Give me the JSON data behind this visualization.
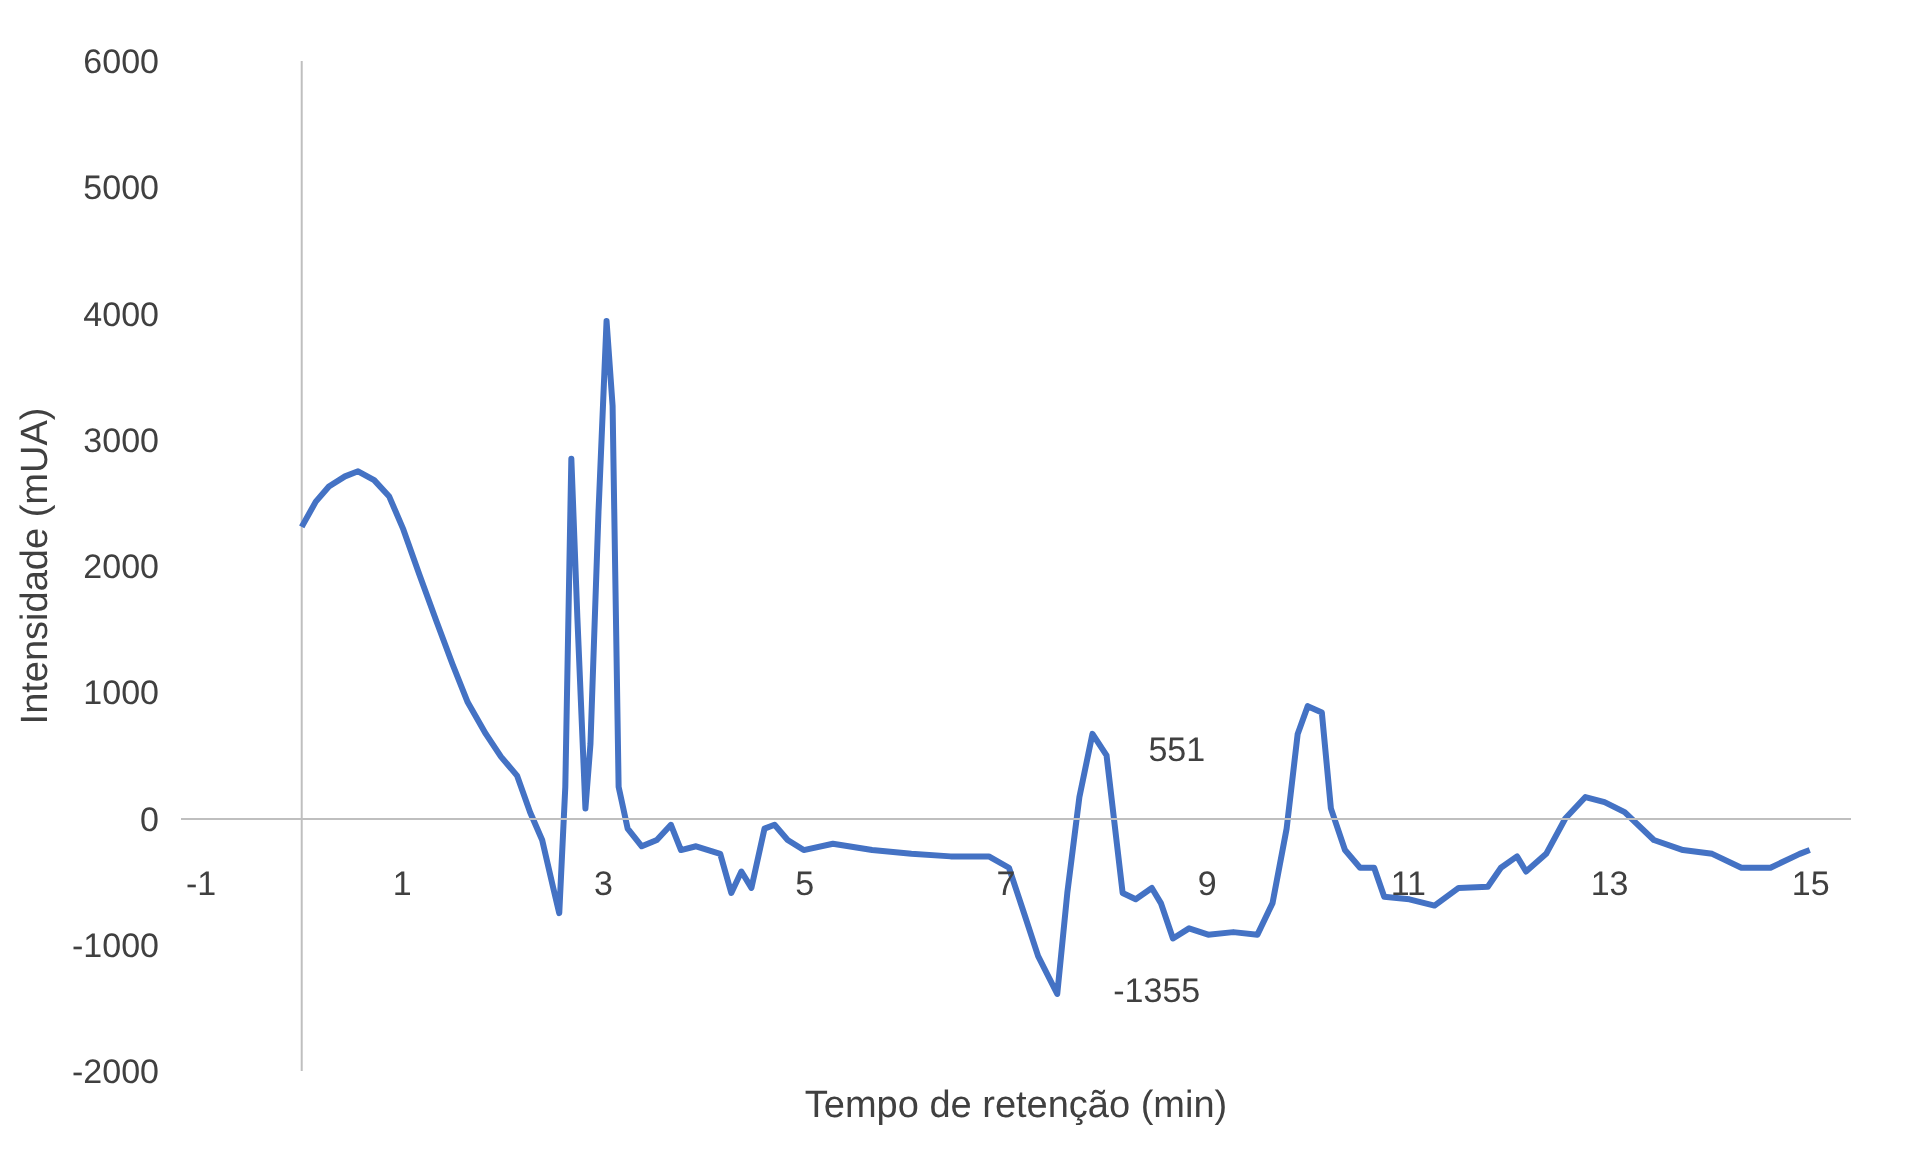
{
  "chart_data": {
    "type": "line",
    "xlabel": "Tempo de retenção (min)",
    "ylabel": "Intensidade (mUA)",
    "xlim": [
      -1.2,
      15.4
    ],
    "ylim": [
      -2000,
      6000
    ],
    "xticks": [
      -1,
      1,
      3,
      5,
      7,
      9,
      11,
      13,
      15
    ],
    "yticks": [
      -2000,
      -1000,
      0,
      1000,
      2000,
      3000,
      4000,
      5000,
      6000
    ],
    "grid": false,
    "marker": "none",
    "line_style": "solid",
    "ref_lines": [
      {
        "axis": "x",
        "value": 0,
        "color": "#bfbfbf"
      }
    ],
    "annotations": [
      {
        "text": "551",
        "x": 7.86,
        "y": 551
      },
      {
        "text": "-1355",
        "x": 7.51,
        "y": -1355
      }
    ],
    "series": [
      {
        "color": "#4472c4",
        "x": [
          0,
          0.14,
          0.27,
          0.43,
          0.56,
          0.72,
          0.87,
          1.01,
          1.17,
          1.34,
          1.5,
          1.65,
          1.83,
          1.98,
          2.14,
          2.27,
          2.39,
          2.5,
          2.56,
          2.62,
          2.68,
          2.74,
          2.82,
          2.87,
          2.95,
          3.03,
          3.09,
          3.15,
          3.24,
          3.38,
          3.53,
          3.67,
          3.77,
          3.92,
          4.16,
          4.27,
          4.37,
          4.47,
          4.6,
          4.7,
          4.83,
          4.99,
          5.28,
          5.67,
          6.06,
          6.45,
          6.83,
          7.03,
          7.18,
          7.32,
          7.51,
          7.61,
          7.73,
          7.86,
          8.0,
          8.16,
          8.29,
          8.45,
          8.54,
          8.66,
          8.82,
          9.01,
          9.26,
          9.5,
          9.65,
          9.79,
          9.9,
          10.0,
          10.14,
          10.23,
          10.37,
          10.52,
          10.66,
          10.76,
          11.01,
          11.26,
          11.5,
          11.79,
          11.92,
          12.08,
          12.17,
          12.37,
          12.56,
          12.76,
          12.95,
          13.15,
          13.44,
          13.73,
          14.02,
          14.31,
          14.6,
          14.89,
          14.99
        ],
        "values": [
          2310,
          2510,
          2630,
          2710,
          2750,
          2680,
          2550,
          2290,
          1930,
          1560,
          1220,
          920,
          670,
          490,
          340,
          50,
          -170,
          -550,
          -750,
          250,
          2850,
          1590,
          80,
          590,
          2430,
          3940,
          3270,
          250,
          -80,
          -220,
          -170,
          -50,
          -250,
          -220,
          -280,
          -590,
          -420,
          -550,
          -80,
          -50,
          -170,
          -250,
          -200,
          -250,
          -280,
          -300,
          -300,
          -390,
          -750,
          -1090,
          -1390,
          -590,
          170,
          670,
          500,
          -590,
          -640,
          -550,
          -670,
          -950,
          -870,
          -920,
          -900,
          -920,
          -670,
          -80,
          670,
          890,
          840,
          80,
          -250,
          -390,
          -390,
          -620,
          -640,
          -690,
          -550,
          -540,
          -390,
          -300,
          -420,
          -280,
          0,
          170,
          130,
          50,
          -170,
          -250,
          -280,
          -390,
          -390,
          -280,
          -250
        ]
      }
    ]
  }
}
